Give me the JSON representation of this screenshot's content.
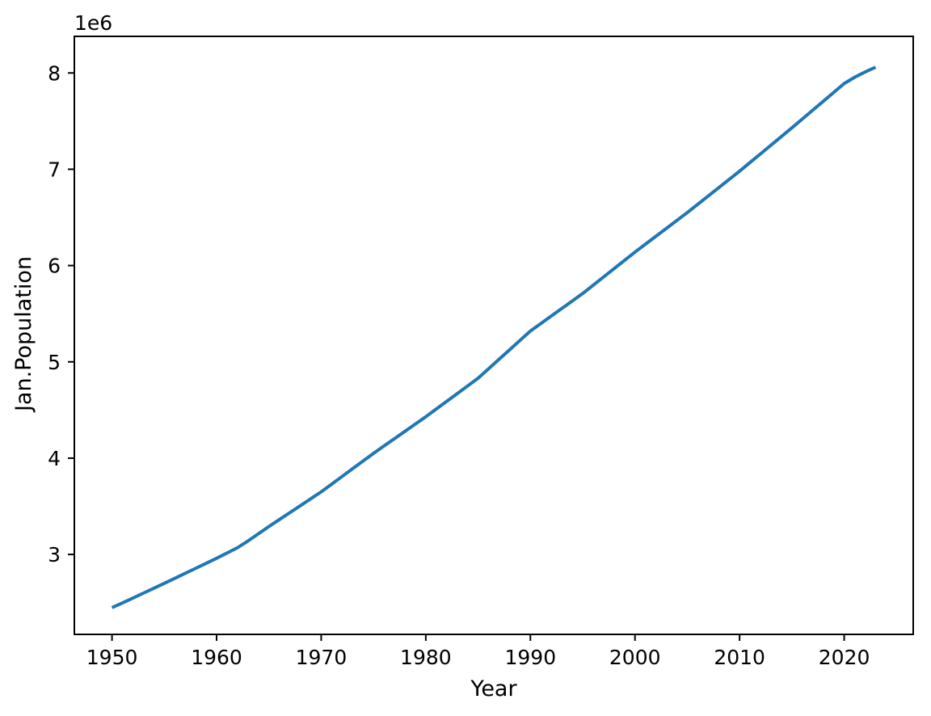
{
  "figure": {
    "background": "#ffffff",
    "text_color": "#000000",
    "spine_color": "#000000"
  },
  "chart_data": {
    "type": "line",
    "title": "",
    "xlabel": "Year",
    "ylabel": "Jan.Population",
    "offset_text": "1e6",
    "legend": null,
    "grid": false,
    "line_color": "#1f77b4",
    "xlim": [
      1946.4,
      2026.6
    ],
    "ylim_millions": [
      2.17,
      8.38
    ],
    "x_tick_values": [
      1950,
      1960,
      1970,
      1980,
      1990,
      2000,
      2010,
      2020
    ],
    "x_tick_labels": [
      "1950",
      "1960",
      "1970",
      "1980",
      "1990",
      "2000",
      "2010",
      "2020"
    ],
    "y_tick_values_millions": [
      3,
      4,
      5,
      6,
      7,
      8
    ],
    "y_tick_labels": [
      "3",
      "4",
      "5",
      "6",
      "7",
      "8"
    ],
    "x": [
      1950,
      1951,
      1952,
      1953,
      1954,
      1955,
      1956,
      1957,
      1958,
      1959,
      1960,
      1961,
      1962,
      1963,
      1964,
      1965,
      1966,
      1967,
      1968,
      1969,
      1970,
      1971,
      1972,
      1973,
      1974,
      1975,
      1976,
      1977,
      1978,
      1979,
      1980,
      1981,
      1982,
      1983,
      1984,
      1985,
      1986,
      1987,
      1988,
      1989,
      1990,
      1991,
      1992,
      1993,
      1994,
      1995,
      1996,
      1997,
      1998,
      1999,
      2000,
      2001,
      2002,
      2003,
      2004,
      2005,
      2006,
      2007,
      2008,
      2009,
      2010,
      2011,
      2012,
      2013,
      2014,
      2015,
      2016,
      2017,
      2018,
      2019,
      2020,
      2021,
      2022,
      2023
    ],
    "y_millions": [
      2.447,
      2.497,
      2.547,
      2.598,
      2.649,
      2.7,
      2.752,
      2.804,
      2.856,
      2.908,
      2.96,
      3.015,
      3.07,
      3.14,
      3.215,
      3.29,
      3.362,
      3.434,
      3.506,
      3.578,
      3.65,
      3.73,
      3.81,
      3.89,
      3.97,
      4.05,
      4.126,
      4.202,
      4.278,
      4.354,
      4.43,
      4.51,
      4.59,
      4.67,
      4.75,
      4.83,
      4.928,
      5.026,
      5.124,
      5.222,
      5.32,
      5.398,
      5.476,
      5.554,
      5.632,
      5.71,
      5.796,
      5.882,
      5.968,
      6.054,
      6.14,
      6.222,
      6.304,
      6.386,
      6.468,
      6.55,
      6.636,
      6.722,
      6.808,
      6.894,
      6.98,
      7.07,
      7.16,
      7.25,
      7.34,
      7.43,
      7.522,
      7.614,
      7.706,
      7.798,
      7.89,
      7.955,
      8.01,
      8.06
    ]
  }
}
